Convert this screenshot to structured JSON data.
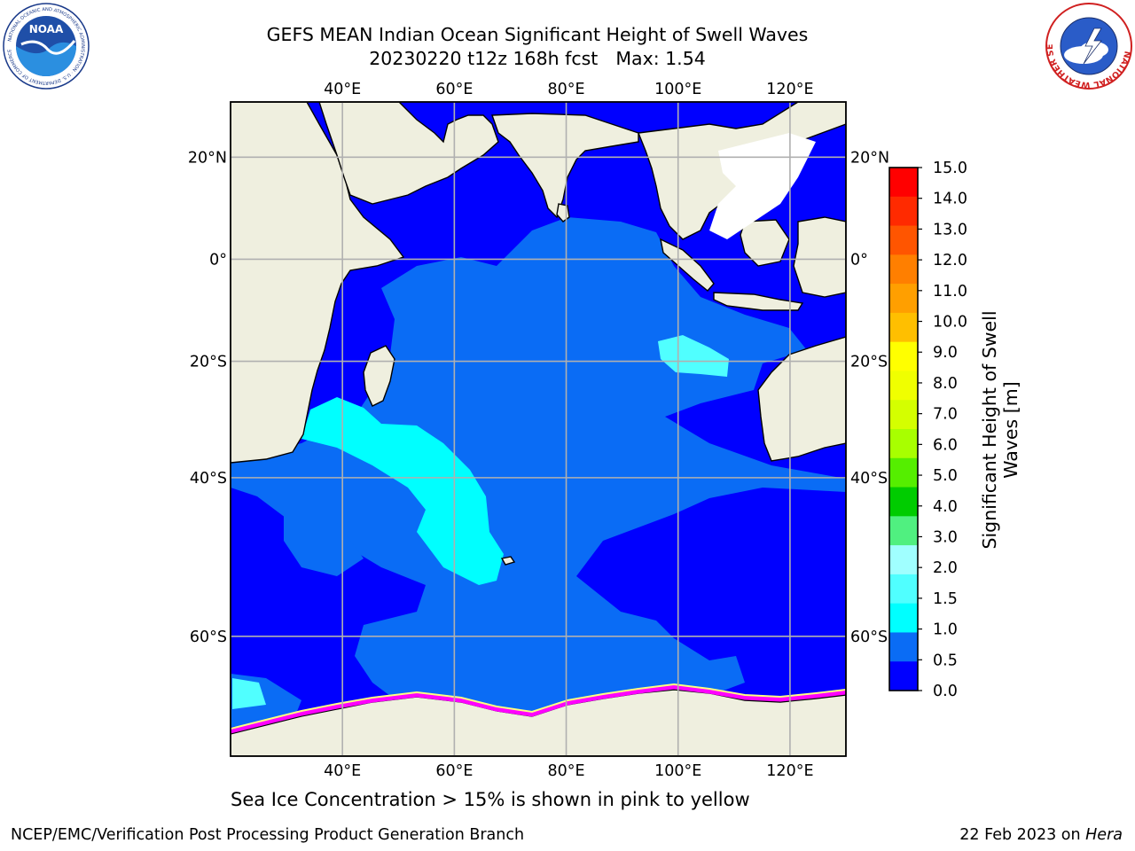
{
  "header": {
    "title_line1": "GEFS MEAN Indian Ocean Significant Height of Swell Waves",
    "run": "20230220 t12z 168h fcst",
    "max_label": "Max: 1.54"
  },
  "logos": {
    "left": {
      "icon": "noaa-logo",
      "text": "NOAA",
      "ring_text": "NATIONAL OCEANIC AND ATMOSPHERIC ADMINISTRATION · U.S. DEPARTMENT OF COMMERCE"
    },
    "right": {
      "icon": "nws-logo",
      "ring_text": "NATIONAL WEATHER SERVICE"
    }
  },
  "map": {
    "lon_labels": [
      "40°E",
      "60°E",
      "80°E",
      "100°E",
      "120°E"
    ],
    "lon_values": [
      40,
      60,
      80,
      100,
      120
    ],
    "lat_labels_left": [
      "20°N",
      "0°",
      "20°S",
      "40°S",
      "60°S"
    ],
    "lat_labels_right": [
      "20°N",
      "0°",
      "20°S",
      "40°S",
      "60°S"
    ],
    "lat_values": [
      20,
      0,
      -20,
      -40,
      -60
    ],
    "extent": {
      "lon_min": 20,
      "lon_max": 130,
      "lat_min": -70,
      "lat_max": 30
    },
    "colors": {
      "land": "#efefdf",
      "grid": "#b0b0b0",
      "ocean_low": "#0000ff",
      "ocean_mid": "#0a6cf5",
      "swell_1_5": "#00ffff",
      "ice_pink": "#ff00ff",
      "ice_yellow": "#ffff00"
    }
  },
  "colorbar": {
    "title_line1": "Significant Height of Swell",
    "title_line2": "Waves [m]",
    "ticks": [
      "15.0",
      "14.0",
      "13.0",
      "12.0",
      "11.0",
      "10.0",
      "9.0",
      "8.0",
      "7.0",
      "6.0",
      "5.0",
      "4.0",
      "3.0",
      "2.0",
      "1.5",
      "1.0",
      "0.5",
      "0.0"
    ],
    "colors_top_to_bottom": [
      "#ff0000",
      "#ff2a00",
      "#ff5500",
      "#ff7f00",
      "#ff9f00",
      "#ffbf00",
      "#ffff00",
      "#f0ff00",
      "#d4ff00",
      "#a8ff00",
      "#55ee00",
      "#00cc00",
      "#50f080",
      "#a0ffff",
      "#50ffff",
      "#00ffff",
      "#0a6cf5",
      "#0000ff"
    ]
  },
  "caption": "Sea Ice Concentration > 15% is shown in pink to yellow",
  "footer": {
    "left": "NCEP/EMC/Verification Post Processing Product Generation Branch",
    "right_date": "22 Feb 2023 on ",
    "right_host": "Hera"
  }
}
